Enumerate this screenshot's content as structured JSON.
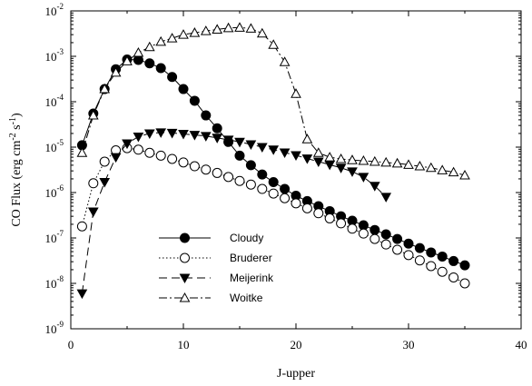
{
  "chart_data": {
    "type": "line",
    "xlabel": "J-upper",
    "ylabel_prefix": "CO Flux (erg cm",
    "ylabel_exp1": "-2",
    "ylabel_mid": " s",
    "ylabel_exp2": "-1",
    "ylabel_suffix": ")",
    "xlim": [
      0,
      40
    ],
    "ylim": [
      1e-09,
      0.01
    ],
    "yscale": "log",
    "x_ticks": [
      0,
      10,
      20,
      30,
      40
    ],
    "y_ticks": [
      {
        "mantissa": "10",
        "exp": "-9",
        "value": 1e-09
      },
      {
        "mantissa": "10",
        "exp": "-8",
        "value": 1e-08
      },
      {
        "mantissa": "10",
        "exp": "-7",
        "value": 1e-07
      },
      {
        "mantissa": "10",
        "exp": "-6",
        "value": 1e-06
      },
      {
        "mantissa": "10",
        "exp": "-5",
        "value": 1e-05
      },
      {
        "mantissa": "10",
        "exp": "-4",
        "value": 0.0001
      },
      {
        "mantissa": "10",
        "exp": "-3",
        "value": 0.001
      },
      {
        "mantissa": "10",
        "exp": "-2",
        "value": 0.01
      }
    ],
    "grid": false,
    "legend_position": "lower-left",
    "series": [
      {
        "name": "Cloudy",
        "marker": "filled-circle",
        "line": "solid",
        "x": [
          1,
          2,
          3,
          4,
          5,
          6,
          7,
          8,
          9,
          10,
          11,
          12,
          13,
          14,
          15,
          16,
          17,
          18,
          19,
          20,
          21,
          22,
          23,
          24,
          25,
          26,
          27,
          28,
          29,
          30,
          31,
          32,
          33,
          34,
          35
        ],
        "y": [
          1.1e-05,
          5.5e-05,
          0.00019,
          0.00052,
          0.00085,
          0.00083,
          0.0007,
          0.00055,
          0.00035,
          0.00019,
          0.000105,
          5e-05,
          2.6e-05,
          1.3e-05,
          6.5e-06,
          4e-06,
          2.5e-06,
          1.7e-06,
          1.2e-06,
          8.5e-07,
          6.5e-07,
          5e-07,
          3.9e-07,
          3e-07,
          2.4e-07,
          1.9e-07,
          1.5e-07,
          1.2e-07,
          9.5e-08,
          7.5e-08,
          6e-08,
          4.8e-08,
          3.9e-08,
          3.1e-08,
          2.5e-08
        ]
      },
      {
        "name": "Bruderer",
        "marker": "open-circle",
        "line": "dotted",
        "x": [
          1,
          2,
          3,
          4,
          5,
          6,
          7,
          8,
          9,
          10,
          11,
          12,
          13,
          14,
          15,
          16,
          17,
          18,
          19,
          20,
          21,
          22,
          23,
          24,
          25,
          26,
          27,
          28,
          29,
          30,
          31,
          32,
          33,
          34,
          35
        ],
        "y": [
          1.8e-07,
          1.6e-06,
          4.8e-06,
          8.5e-06,
          9.5e-06,
          8.8e-06,
          7.5e-06,
          6.5e-06,
          5.5e-06,
          4.6e-06,
          3.8e-06,
          3.2e-06,
          2.7e-06,
          2.2e-06,
          1.8e-06,
          1.5e-06,
          1.2e-06,
          9.5e-07,
          7.5e-07,
          5.8e-07,
          4.5e-07,
          3.5e-07,
          2.7e-07,
          2.1e-07,
          1.6e-07,
          1.25e-07,
          9.5e-08,
          7.2e-08,
          5.5e-08,
          4.2e-08,
          3.2e-08,
          2.4e-08,
          1.8e-08,
          1.35e-08,
          1e-08
        ]
      },
      {
        "name": "Meijerink",
        "marker": "filled-triangle-down",
        "line": "dashed",
        "x": [
          1,
          2,
          3,
          4,
          5,
          6,
          7,
          8,
          9,
          10,
          11,
          12,
          13,
          14,
          15,
          16,
          17,
          18,
          19,
          20,
          21,
          22,
          23,
          24,
          25,
          26,
          27,
          28
        ],
        "y": [
          6e-09,
          3.8e-07,
          1.7e-06,
          6e-06,
          1.2e-05,
          1.7e-05,
          2e-05,
          2.1e-05,
          2.05e-05,
          1.95e-05,
          1.85e-05,
          1.75e-05,
          1.6e-05,
          1.45e-05,
          1.3e-05,
          1.15e-05,
          1e-05,
          8.8e-06,
          7.6e-06,
          6.6e-06,
          5.6e-06,
          4.8e-06,
          4.1e-06,
          3.5e-06,
          2.9e-06,
          2.2e-06,
          1.4e-06,
          8e-07
        ]
      },
      {
        "name": "Woitke",
        "marker": "open-triangle-up",
        "line": "dash-dot",
        "x": [
          1,
          2,
          3,
          4,
          5,
          6,
          7,
          8,
          9,
          10,
          11,
          12,
          13,
          14,
          15,
          16,
          17,
          18,
          19,
          20,
          21,
          22,
          23,
          24,
          25,
          26,
          27,
          28,
          29,
          30,
          31,
          32,
          33,
          34,
          35
        ],
        "y": [
          7.5e-06,
          5e-05,
          0.00019,
          0.00044,
          0.00078,
          0.0012,
          0.0016,
          0.0021,
          0.0025,
          0.003,
          0.0033,
          0.0036,
          0.0039,
          0.0042,
          0.0043,
          0.0041,
          0.0032,
          0.0018,
          0.00075,
          0.00015,
          1.5e-05,
          7.5e-06,
          6e-06,
          5.5e-06,
          5.2e-06,
          5e-06,
          4.8e-06,
          4.6e-06,
          4.4e-06,
          4.1e-06,
          3.8e-06,
          3.5e-06,
          3.1e-06,
          2.8e-06,
          2.4e-06
        ]
      }
    ]
  }
}
